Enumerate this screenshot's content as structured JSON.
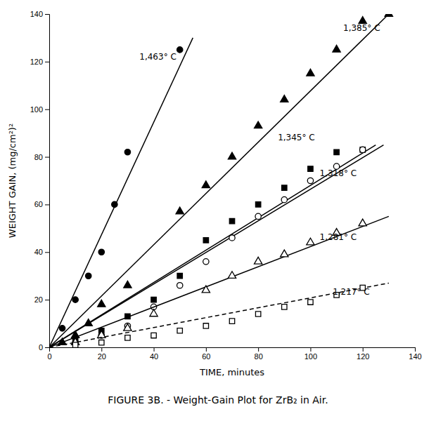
{
  "chart_data": {
    "type": "scatter",
    "title": "FIGURE 3B. - Weight-Gain Plot for ZrB₂ in Air.",
    "xlabel": "TIME, minutes",
    "ylabel": "WEIGHT GAIN, (mg/cm²)²",
    "xlim": [
      0,
      140
    ],
    "ylim": [
      0,
      140
    ],
    "xticks": [
      0,
      20,
      40,
      60,
      80,
      100,
      120,
      140
    ],
    "yticks": [
      0,
      20,
      40,
      60,
      80,
      100,
      120,
      140
    ],
    "grid": false,
    "series": [
      {
        "type": "line",
        "line_style": "solid",
        "color": "black",
        "x": [
          0,
          55
        ],
        "values": [
          0,
          130
        ]
      },
      {
        "type": "scatter",
        "marker": "circle",
        "color": "black",
        "x": [
          5,
          10,
          15,
          20,
          25,
          30,
          50
        ],
        "values": [
          8,
          20,
          30,
          40,
          60,
          82,
          125
        ]
      },
      {
        "type": "line",
        "line_style": "solid",
        "color": "black",
        "x": [
          0,
          130
        ],
        "values": [
          0,
          140
        ]
      },
      {
        "type": "scatter",
        "marker": "triangle",
        "color": "black",
        "x": [
          5,
          10,
          15,
          20,
          30,
          50,
          60,
          70,
          80,
          90,
          100,
          110,
          120,
          130
        ],
        "values": [
          2,
          5,
          10,
          18,
          26,
          57,
          68,
          80,
          93,
          104,
          115,
          125,
          137,
          140
        ]
      },
      {
        "type": "line",
        "line_style": "solid",
        "color": "black",
        "x": [
          0,
          125
        ],
        "values": [
          0,
          85
        ]
      },
      {
        "type": "scatter",
        "marker": "square",
        "color": "black",
        "x": [
          10,
          20,
          30,
          40,
          50,
          60,
          70,
          80,
          90,
          100,
          110,
          120
        ],
        "values": [
          3,
          7,
          13,
          20,
          30,
          45,
          53,
          60,
          67,
          75,
          82,
          83
        ]
      },
      {
        "type": "line",
        "line_style": "solid",
        "color": "black",
        "x": [
          0,
          128
        ],
        "values": [
          0,
          85
        ]
      },
      {
        "type": "scatter",
        "marker": "circle-open",
        "color": "black",
        "x": [
          10,
          20,
          30,
          40,
          50,
          60,
          70,
          80,
          90,
          100,
          110,
          120
        ],
        "values": [
          2,
          5,
          9,
          17,
          26,
          36,
          46,
          55,
          62,
          70,
          76,
          83
        ]
      },
      {
        "type": "line",
        "line_style": "solid",
        "color": "black",
        "x": [
          0,
          130
        ],
        "values": [
          0,
          55
        ]
      },
      {
        "type": "scatter",
        "marker": "triangle-open",
        "color": "black",
        "x": [
          10,
          20,
          30,
          40,
          60,
          70,
          80,
          90,
          100,
          110,
          120
        ],
        "values": [
          2,
          5,
          8,
          14,
          24,
          30,
          36,
          39,
          44,
          48,
          52
        ]
      },
      {
        "type": "line",
        "line_style": "dashed",
        "color": "black",
        "x": [
          0,
          130
        ],
        "values": [
          0,
          27
        ]
      },
      {
        "type": "scatter",
        "marker": "square-open",
        "color": "black",
        "x": [
          10,
          20,
          30,
          40,
          50,
          60,
          70,
          80,
          90,
          100,
          110,
          120
        ],
        "values": [
          1,
          2,
          4,
          5,
          7,
          9,
          11,
          14,
          17,
          19,
          22,
          25
        ]
      }
    ],
    "annotations": [
      {
        "text": "1,463° C",
        "x": 34,
        "y": 122
      },
      {
        "text": "1,385° C",
        "x": 112,
        "y": 134
      },
      {
        "text": "1,345° C",
        "x": 87,
        "y": 88
      },
      {
        "text": "1,318° C",
        "x": 103,
        "y": 73
      },
      {
        "text": "1,281° C",
        "x": 103,
        "y": 46
      },
      {
        "text": "1,217° C",
        "x": 108,
        "y": 23
      }
    ]
  }
}
